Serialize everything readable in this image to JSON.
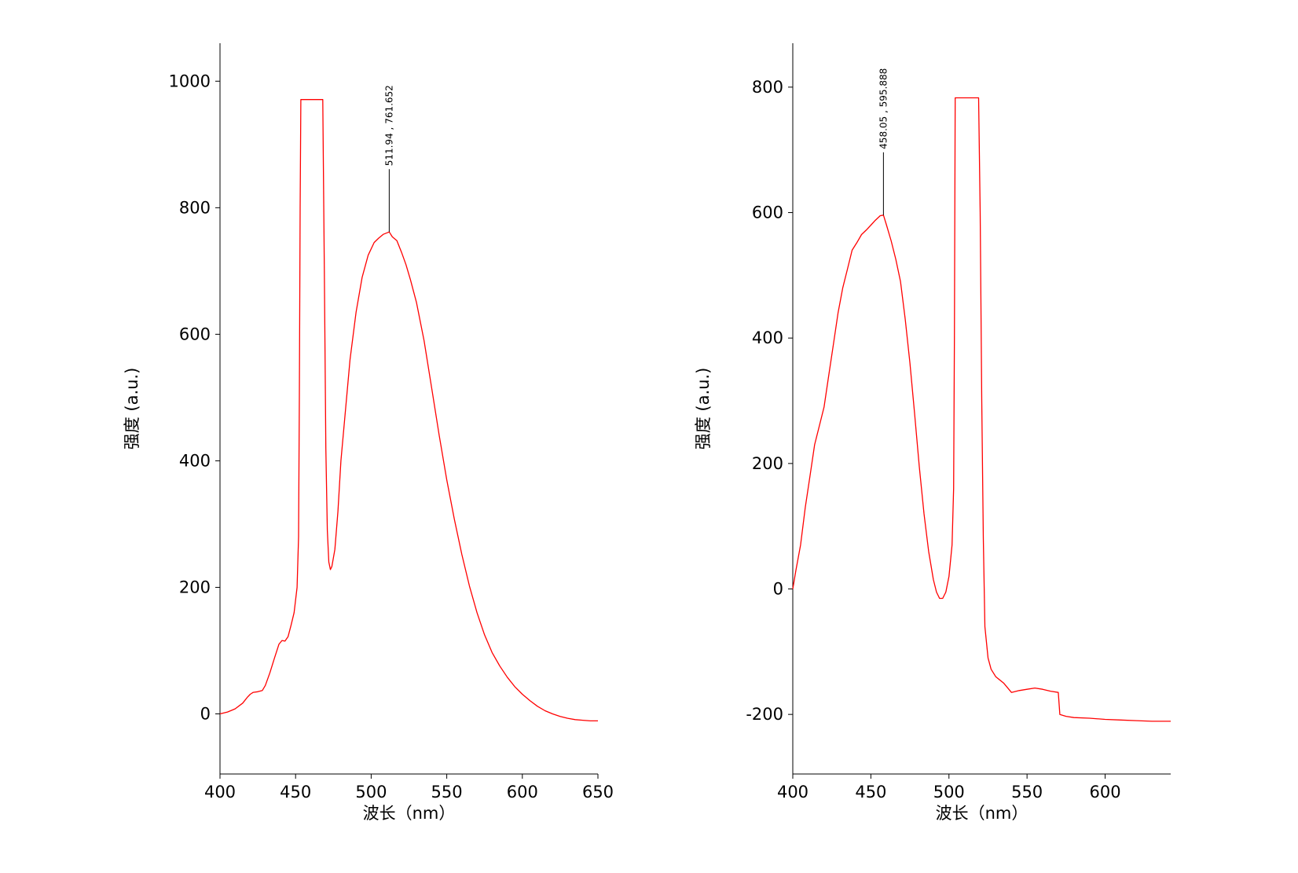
{
  "chart_data": [
    {
      "type": "line",
      "title": "",
      "xlabel": "波长（nm）",
      "ylabel": "强度 (a.u.)",
      "xlim": [
        400,
        650
      ],
      "ylim": [
        -95,
        1060
      ],
      "x_ticks": [
        400,
        450,
        500,
        550,
        600,
        650
      ],
      "y_ticks": [
        0,
        200,
        400,
        600,
        800,
        1000
      ],
      "grid": false,
      "line_color": "#ff0000",
      "marker_color": "#000000",
      "annotations": [
        {
          "text": "511.94 , 761.652",
          "x": 511.94,
          "y": 761.652
        }
      ],
      "markers": [
        {
          "x": 453.5,
          "y": 1060
        }
      ],
      "series": [
        {
          "points": [
            [
              400,
              0
            ],
            [
              405,
              3
            ],
            [
              410,
              8
            ],
            [
              415,
              17
            ],
            [
              418,
              26
            ],
            [
              420,
              31
            ],
            [
              422,
              34
            ],
            [
              425,
              35
            ],
            [
              428,
              37
            ],
            [
              430,
              45
            ],
            [
              433,
              65
            ],
            [
              436,
              88
            ],
            [
              439,
              110
            ],
            [
              441,
              116
            ],
            [
              443,
              115
            ],
            [
              445,
              122
            ],
            [
              447,
              140
            ],
            [
              449,
              160
            ],
            [
              451,
              200
            ],
            [
              452,
              280
            ],
            [
              452.5,
              500
            ],
            [
              453,
              800
            ],
            [
              453.5,
              971
            ],
            [
              468,
              971
            ],
            [
              469,
              700
            ],
            [
              470,
              420
            ],
            [
              471,
              290
            ],
            [
              472,
              240
            ],
            [
              473,
              228
            ],
            [
              474,
              233
            ],
            [
              476,
              260
            ],
            [
              478,
              320
            ],
            [
              480,
              400
            ],
            [
              483,
              480
            ],
            [
              486,
              560
            ],
            [
              490,
              635
            ],
            [
              494,
              690
            ],
            [
              498,
              725
            ],
            [
              502,
              745
            ],
            [
              505,
              752
            ],
            [
              508,
              758
            ],
            [
              511.94,
              761.652
            ],
            [
              514,
              754
            ],
            [
              517,
              748
            ],
            [
              520,
              730
            ],
            [
              523,
              710
            ],
            [
              526,
              686
            ],
            [
              530,
              650
            ],
            [
              535,
              590
            ],
            [
              540,
              515
            ],
            [
              545,
              440
            ],
            [
              550,
              370
            ],
            [
              555,
              308
            ],
            [
              560,
              252
            ],
            [
              565,
              202
            ],
            [
              570,
              160
            ],
            [
              575,
              125
            ],
            [
              580,
              97
            ],
            [
              585,
              76
            ],
            [
              590,
              58
            ],
            [
              595,
              43
            ],
            [
              600,
              31
            ],
            [
              605,
              21
            ],
            [
              610,
              12
            ],
            [
              615,
              5
            ],
            [
              620,
              0
            ],
            [
              625,
              -4
            ],
            [
              630,
              -7
            ],
            [
              635,
              -9
            ],
            [
              640,
              -10
            ],
            [
              645,
              -11
            ],
            [
              650,
              -11
            ]
          ]
        }
      ]
    },
    {
      "type": "line",
      "title": "",
      "xlabel": "波长（nm）",
      "ylabel": "强度 (a.u.)",
      "xlim": [
        400,
        642
      ],
      "ylim": [
        -295,
        870
      ],
      "x_ticks": [
        400,
        450,
        500,
        550,
        600
      ],
      "y_ticks": [
        -200,
        0,
        200,
        400,
        600,
        800
      ],
      "grid": false,
      "line_color": "#ff0000",
      "marker_color": "#000000",
      "annotations": [
        {
          "text": "458.05 , 595.888",
          "x": 458.05,
          "y": 595.888
        }
      ],
      "markers": [
        {
          "x": 504.5,
          "y": 870
        }
      ],
      "series": [
        {
          "points": [
            [
              400,
              0
            ],
            [
              402,
              30
            ],
            [
              405,
              70
            ],
            [
              408,
              130
            ],
            [
              411,
              180
            ],
            [
              414,
              230
            ],
            [
              417,
              260
            ],
            [
              420,
              290
            ],
            [
              423,
              340
            ],
            [
              426,
              390
            ],
            [
              429,
              440
            ],
            [
              432,
              480
            ],
            [
              435,
              510
            ],
            [
              438,
              540
            ],
            [
              441,
              552
            ],
            [
              444,
              565
            ],
            [
              447,
              572
            ],
            [
              450,
              580
            ],
            [
              453,
              588
            ],
            [
              456,
              595
            ],
            [
              458.05,
              595.888
            ],
            [
              460,
              580
            ],
            [
              463,
              555
            ],
            [
              466,
              525
            ],
            [
              469,
              490
            ],
            [
              472,
              430
            ],
            [
              475,
              360
            ],
            [
              478,
              280
            ],
            [
              481,
              195
            ],
            [
              484,
              120
            ],
            [
              487,
              60
            ],
            [
              490,
              15
            ],
            [
              492,
              -5
            ],
            [
              494,
              -15
            ],
            [
              496,
              -15
            ],
            [
              498,
              -5
            ],
            [
              500,
              20
            ],
            [
              502,
              70
            ],
            [
              503,
              160
            ],
            [
              503.5,
              400
            ],
            [
              504,
              783
            ],
            [
              519,
              783
            ],
            [
              520,
              600
            ],
            [
              521,
              300
            ],
            [
              522,
              80
            ],
            [
              523,
              -60
            ],
            [
              525,
              -110
            ],
            [
              527,
              -128
            ],
            [
              530,
              -140
            ],
            [
              535,
              -150
            ],
            [
              540,
              -165
            ],
            [
              545,
              -162
            ],
            [
              550,
              -160
            ],
            [
              555,
              -158
            ],
            [
              560,
              -160
            ],
            [
              565,
              -163
            ],
            [
              570,
              -165
            ],
            [
              571,
              -200
            ],
            [
              575,
              -203
            ],
            [
              580,
              -205
            ],
            [
              590,
              -206
            ],
            [
              600,
              -208
            ],
            [
              610,
              -209
            ],
            [
              620,
              -210
            ],
            [
              630,
              -211
            ],
            [
              642,
              -211
            ]
          ]
        }
      ]
    }
  ]
}
